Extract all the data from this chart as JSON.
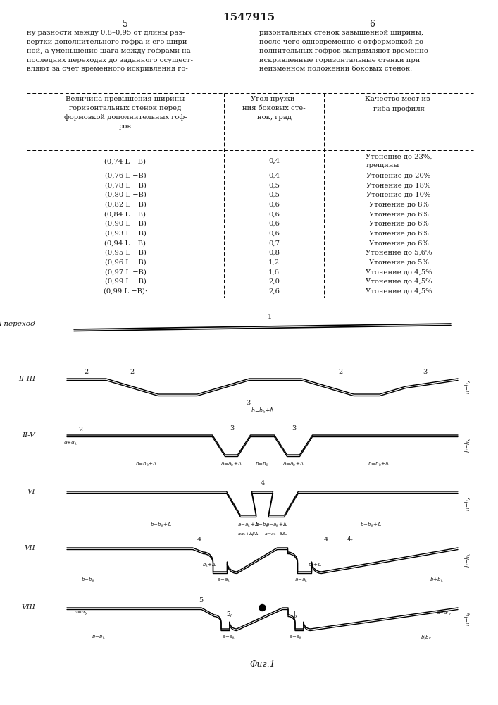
{
  "page_number_left": "5",
  "page_number_right": "6",
  "patent_number": "1547915",
  "text_left": "ну разности между 0,8–0,95 от длины раз-\nвертки дополнительного гофра и его шири-\nной, а уменьшение шага между гофрами на\nпоследних переходах до заданного осущест-\nвляют за счет временного искривления го-",
  "text_right": "ризонтальных стенок завышенной ширины,\nпосле чего одновременно с отформовкой до-\nполнительных гофров выпрямляют временно\nискривленные горизонтальные стенки при\nнеизменном положении боковых стенок.",
  "col1_header": "Величина превышения ширины\nгоризонтальных стенок перед\nформовкой дополнительных гоф-\nров",
  "col2_header": "Угол пружи-\nния боковых сте-\nнок, град",
  "col3_header": "Качество мест из-\nгиба профиля",
  "table_rows": [
    [
      "(0,74 L −B)",
      "0,4",
      "Утонение до 23%,\nтрещины"
    ],
    [
      "(0,76 L −B)",
      "0,4",
      "Утонение до 20%"
    ],
    [
      "(0,78 L −B)",
      "0,5",
      "Утонение до 18%"
    ],
    [
      "(0,80 L −B)",
      "0,5",
      "Утонение до 10%"
    ],
    [
      "(0,82 L −B)",
      "0,6",
      "Утонение до 8%"
    ],
    [
      "(0,84 L −B)",
      "0,6",
      "Утонение до 6%"
    ],
    [
      "(0,90 L −B)",
      "0,6",
      "Утонение до 6%"
    ],
    [
      "(0,93 L −B)",
      "0,6",
      "Утонение до 6%"
    ],
    [
      "(0,94 L −B)",
      "0,7",
      "Утонение до 6%"
    ],
    [
      "(0,95 L −B)",
      "0,8",
      "Утонение до 5,6%"
    ],
    [
      "(0,96 L −B)",
      "1,2",
      "Утонение до 5%"
    ],
    [
      "(0,97 L −B)",
      "1,6",
      "Утонение до 4,5%"
    ],
    [
      "(0,99 L −B)",
      "2,0",
      "Утонение до 4,5%"
    ],
    [
      "(0,99 L −B)·",
      "2,6",
      "Утонение до 4,5%"
    ]
  ],
  "fig_caption": "Фиг.1",
  "stage_labels": [
    "I переход",
    "II-III",
    "II-V",
    "VI",
    "VII",
    "VIII"
  ],
  "bg_color": "#ffffff",
  "text_color": "#1a1a1a"
}
